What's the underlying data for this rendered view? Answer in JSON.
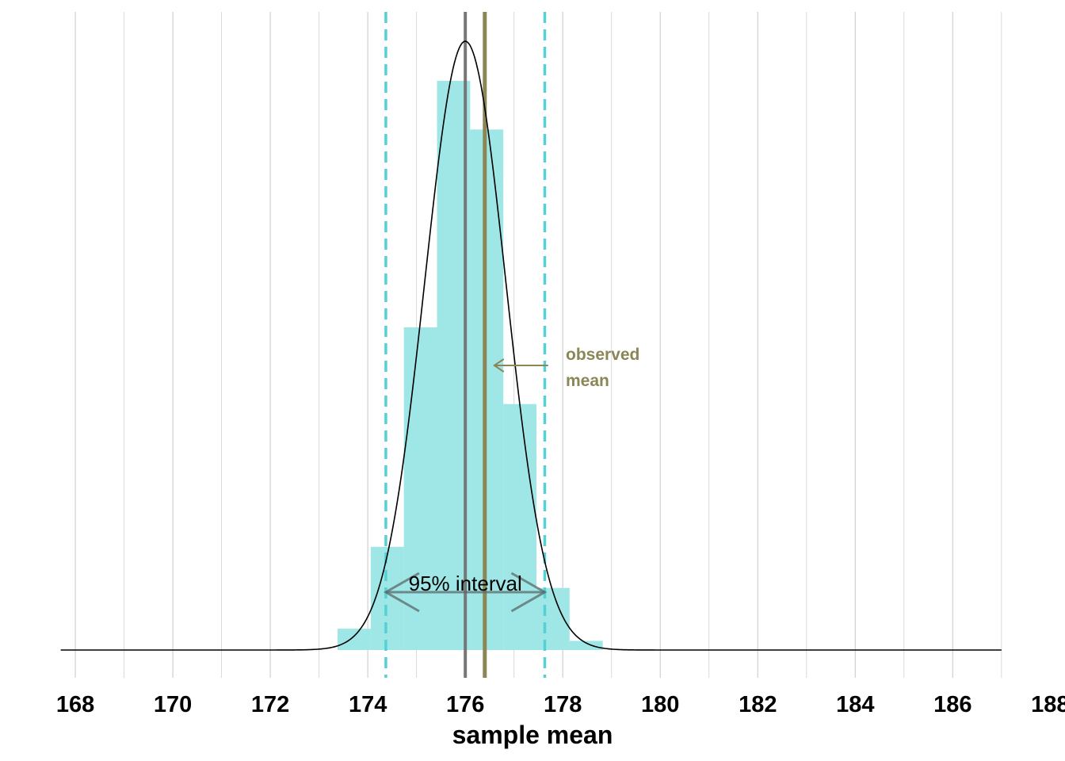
{
  "chart_data": {
    "type": "bar",
    "xlabel": "sample mean",
    "xlim": [
      167.3,
      187.1
    ],
    "x_ticks": [
      168,
      170,
      172,
      174,
      176,
      178,
      180,
      182,
      184,
      186,
      188
    ],
    "grid": "vertical",
    "histogram": {
      "bin_width": 0.68,
      "bins": [
        {
          "x0": 173.38,
          "x1": 174.06,
          "height": 0.07
        },
        {
          "x0": 174.06,
          "x1": 174.74,
          "height": 0.339
        },
        {
          "x0": 174.74,
          "x1": 175.42,
          "height": 1.06
        },
        {
          "x0": 175.42,
          "x1": 176.1,
          "height": 1.87
        },
        {
          "x0": 176.1,
          "x1": 176.78,
          "height": 1.71
        },
        {
          "x0": 176.78,
          "x1": 177.46,
          "height": 0.808
        },
        {
          "x0": 177.46,
          "x1": 178.14,
          "height": 0.204
        },
        {
          "x0": 178.14,
          "x1": 178.82,
          "height": 0.03
        }
      ]
    },
    "density_curve": {
      "mean": 176.0,
      "sd": 0.83,
      "peak": 2.0
    },
    "reference_lines": {
      "population_mean": 176.0,
      "observed_mean": 176.4,
      "interval_lower": 174.37,
      "interval_upper": 177.63
    },
    "annotations": {
      "observed_label": [
        "observed",
        "mean"
      ],
      "interval_label": "95% interval"
    }
  },
  "colors": {
    "histogram": "#9fe6e6",
    "interval_lines": "#55d0d6",
    "population_mean": "#777777",
    "observed_mean": "#8b8655",
    "curve": "#000000",
    "grid": "#d0d0d0",
    "arrow": "#5a6a6a"
  }
}
